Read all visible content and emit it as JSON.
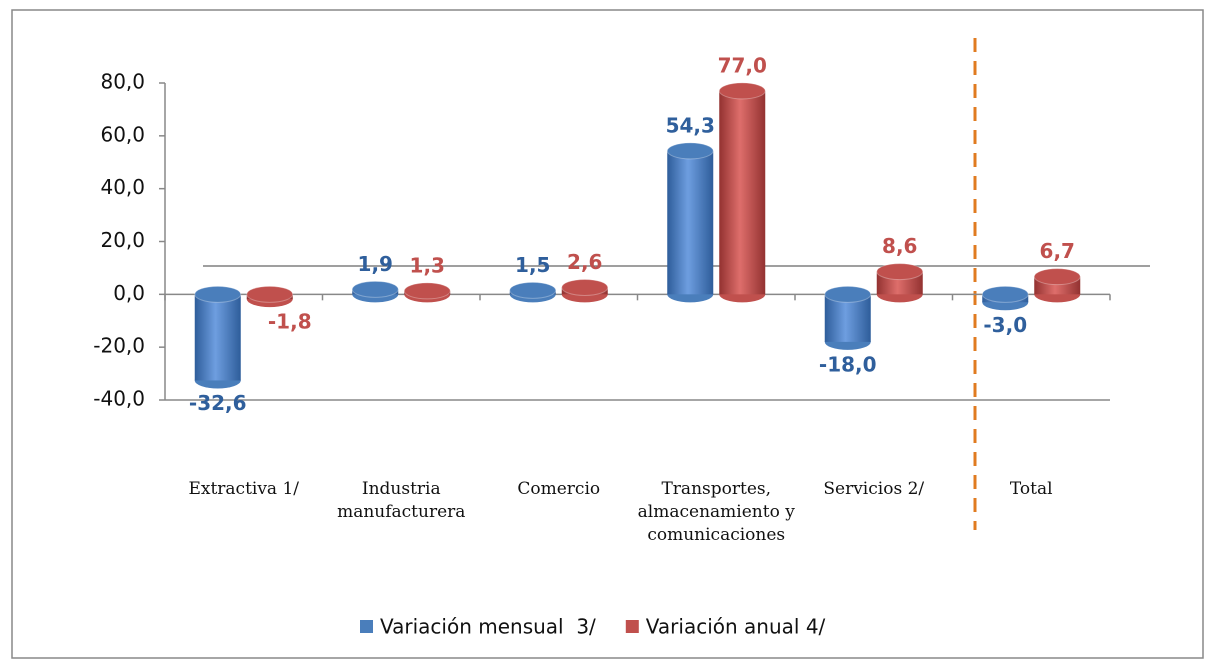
{
  "chart_data": {
    "type": "bar",
    "categories": [
      "Extractiva 1/",
      "Industria manufacturera",
      "Comercio",
      "Transportes, almacenamiento y comunicaciones",
      "Servicios 2/",
      "Total"
    ],
    "series": [
      {
        "name": "Variación mensual  3/",
        "color": "#4a7ebb",
        "label_color": "#2f5f9c",
        "values": [
          -32.6,
          1.9,
          1.5,
          54.3,
          -18.0,
          -3.0
        ],
        "value_labels": [
          "-32,6",
          "1,9",
          "1,5",
          "54,3",
          "-18,0",
          "-3,0"
        ]
      },
      {
        "name": "Variación anual 4/",
        "color": "#c0504d",
        "label_color": "#c0504d",
        "values": [
          -1.8,
          1.3,
          2.6,
          77.0,
          8.6,
          6.7
        ],
        "value_labels": [
          "-1,8",
          "1,3",
          "2,6",
          "77,0",
          "8,6",
          "6,7"
        ]
      }
    ],
    "ylim": [
      -40,
      80
    ],
    "yticks": [
      {
        "value": -40,
        "label": "-40,0"
      },
      {
        "value": -20,
        "label": "-20,0"
      },
      {
        "value": 0,
        "label": "0,0"
      },
      {
        "value": 20,
        "label": "20,0"
      },
      {
        "value": 40,
        "label": "40,0"
      },
      {
        "value": 60,
        "label": "60,0"
      },
      {
        "value": 80,
        "label": "80,0"
      }
    ],
    "grid": false,
    "legend": "bottom"
  }
}
